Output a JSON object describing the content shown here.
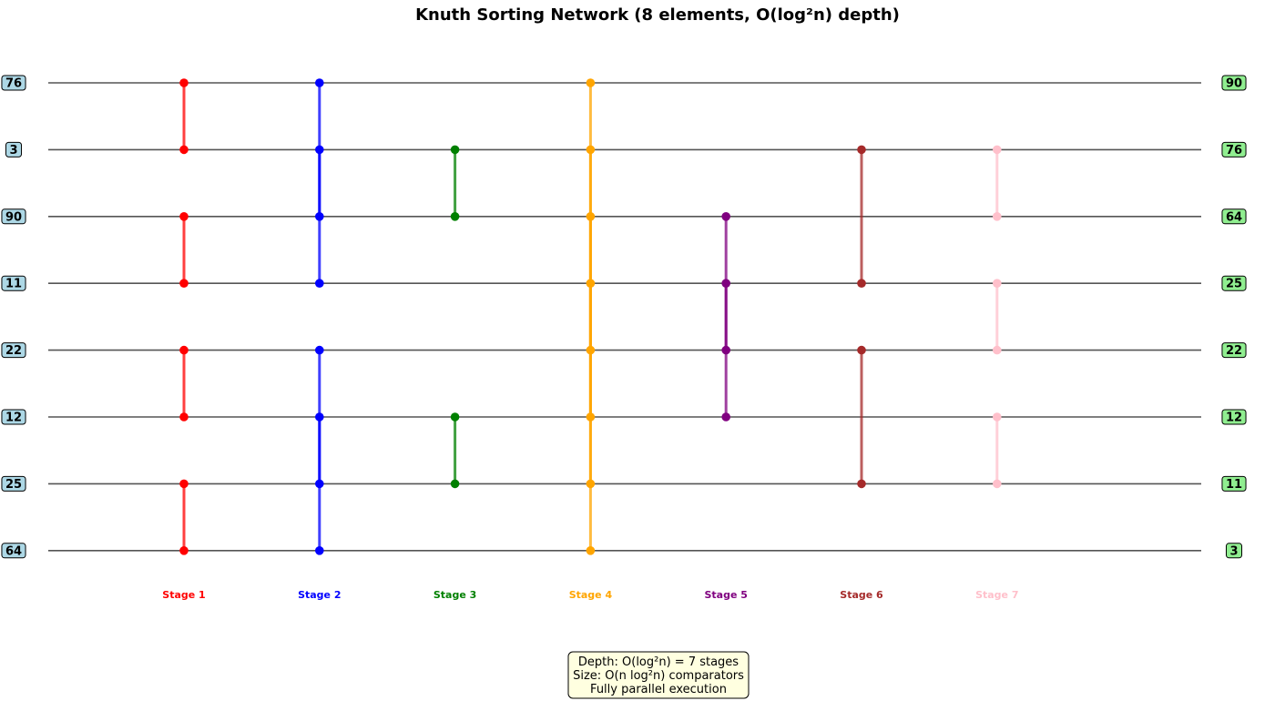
{
  "title": "Knuth Sorting Network (8 elements, O(log²n) depth)",
  "inputs": [
    "76",
    "3",
    "90",
    "11",
    "22",
    "12",
    "25",
    "64"
  ],
  "outputs": [
    "90",
    "76",
    "64",
    "25",
    "22",
    "12",
    "11",
    "3"
  ],
  "colors": {
    "input_box": "#add8e6",
    "output_box": "#90ee90",
    "info_box": "#ffffe0",
    "wire": "#555555"
  },
  "stages": [
    {
      "label": "Stage 1",
      "color": "#ff0000",
      "comparators": [
        [
          0,
          1
        ],
        [
          2,
          3
        ],
        [
          4,
          5
        ],
        [
          6,
          7
        ]
      ]
    },
    {
      "label": "Stage 2",
      "color": "#0000ff",
      "comparators": [
        [
          0,
          3
        ],
        [
          1,
          2
        ],
        [
          4,
          7
        ],
        [
          5,
          6
        ]
      ]
    },
    {
      "label": "Stage 3",
      "color": "#008000",
      "comparators": [
        [
          1,
          2
        ],
        [
          5,
          6
        ]
      ]
    },
    {
      "label": "Stage 4",
      "color": "#ffa500",
      "comparators": [
        [
          0,
          7
        ],
        [
          1,
          6
        ],
        [
          2,
          5
        ],
        [
          3,
          4
        ]
      ]
    },
    {
      "label": "Stage 5",
      "color": "#800080",
      "comparators": [
        [
          2,
          4
        ],
        [
          3,
          5
        ]
      ]
    },
    {
      "label": "Stage 6",
      "color": "#a52a2a",
      "comparators": [
        [
          1,
          3
        ],
        [
          4,
          6
        ]
      ]
    },
    {
      "label": "Stage 7",
      "color": "#ffc0cb",
      "comparators": [
        [
          1,
          2
        ],
        [
          3,
          4
        ],
        [
          5,
          6
        ]
      ]
    }
  ],
  "info": [
    "Depth: O(log²n) = 7 stages",
    "Size: O(n log²n) comparators",
    "Fully parallel execution"
  ]
}
